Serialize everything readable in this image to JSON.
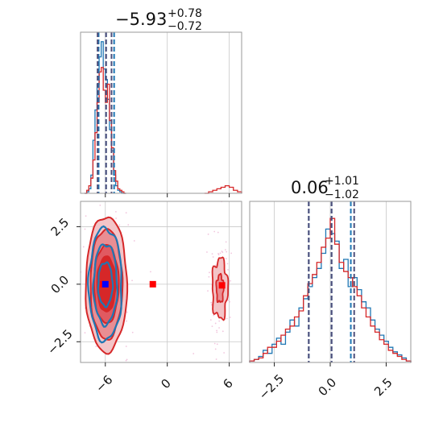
{
  "colors": {
    "blue": "#1f77b4",
    "red": "#d62728",
    "red_fill_dark": "#d62728",
    "red_fill_light": "#eeaaae",
    "quantile_line": "#4e4e7a"
  },
  "chart_data": [
    {
      "type": "histogram",
      "panel": "top-left (marginal of x)",
      "title": {
        "value": "−5.93",
        "upper": "+0.78",
        "lower": "−0.72"
      },
      "xlim": [
        -8.4,
        7.2
      ],
      "xticks": [
        -6,
        0,
        6
      ],
      "grid": true,
      "series": [
        {
          "name": "",
          "color": "blue",
          "bin_edges": [
            -8.0,
            -7.8,
            -7.6,
            -7.4,
            -7.2,
            -7.0,
            -6.8,
            -6.6,
            -6.4,
            -6.2,
            -6.0,
            -5.8,
            -5.6,
            -5.4,
            -5.2,
            -5.0,
            -4.8,
            -4.6,
            -4.4,
            -4.2,
            -4.0
          ],
          "counts": [
            0.0,
            0.01,
            0.03,
            0.12,
            0.35,
            0.55,
            0.72,
            0.9,
            1.0,
            0.82,
            0.75,
            0.62,
            0.42,
            0.28,
            0.12,
            0.05,
            0.02,
            0.01,
            0.0,
            0.0
          ],
          "quantiles": [
            -6.65,
            -5.93,
            -5.15
          ]
        },
        {
          "name": "",
          "color": "red",
          "bin_edges": [
            -8.0,
            -7.8,
            -7.6,
            -7.4,
            -7.2,
            -7.0,
            -6.8,
            -6.6,
            -6.4,
            -6.2,
            -6.0,
            -5.8,
            -5.6,
            -5.4,
            -5.2,
            -5.0,
            -4.8,
            -4.6,
            -4.4,
            -4.2,
            -4.0
          ],
          "counts": [
            0.0,
            0.02,
            0.05,
            0.1,
            0.22,
            0.4,
            0.6,
            0.8,
            0.83,
            0.68,
            0.6,
            0.72,
            0.48,
            0.3,
            0.15,
            0.08,
            0.03,
            0.02,
            0.01,
            0.0
          ],
          "secondary_mode": {
            "bin_edges": [
              3.6,
              4.0,
              4.4,
              4.8,
              5.2,
              5.6,
              6.0,
              6.4,
              6.8,
              7.2
            ],
            "counts": [
              0.0,
              0.01,
              0.02,
              0.03,
              0.04,
              0.05,
              0.04,
              0.02,
              0.01
            ]
          },
          "quantiles": [
            -6.75,
            -5.93,
            -5.4
          ]
        }
      ]
    },
    {
      "type": "histogram",
      "panel": "bottom-right (marginal of y)",
      "title": {
        "value": "0.06",
        "upper": "+1.01",
        "lower": "−1.02"
      },
      "xlim": [
        -3.6,
        3.6
      ],
      "xticks": [
        -2.5,
        0.0,
        2.5
      ],
      "xtick_labels": [
        "−2.5",
        "0.0",
        "2.5"
      ],
      "grid": true,
      "series": [
        {
          "name": "",
          "color": "blue",
          "bin_edges": [
            -3.6,
            -3.4,
            -3.2,
            -3.0,
            -2.8,
            -2.6,
            -2.4,
            -2.2,
            -2.0,
            -1.8,
            -1.6,
            -1.4,
            -1.2,
            -1.0,
            -0.8,
            -0.6,
            -0.4,
            -0.2,
            0.0,
            0.2,
            0.4,
            0.6,
            0.8,
            1.0,
            1.2,
            1.4,
            1.6,
            1.8,
            2.0,
            2.2,
            2.4,
            2.6,
            2.8,
            3.0,
            3.2,
            3.4,
            3.6
          ],
          "counts": [
            0.01,
            0.02,
            0.04,
            0.08,
            0.06,
            0.12,
            0.16,
            0.12,
            0.2,
            0.28,
            0.24,
            0.36,
            0.42,
            0.5,
            0.56,
            0.62,
            0.72,
            0.88,
            0.85,
            0.8,
            0.62,
            0.68,
            0.5,
            0.56,
            0.48,
            0.4,
            0.36,
            0.28,
            0.22,
            0.18,
            0.14,
            0.1,
            0.07,
            0.05,
            0.03,
            0.01
          ],
          "quantiles": [
            -0.96,
            0.06,
            0.92
          ]
        },
        {
          "name": "",
          "color": "red",
          "bin_edges": [
            -3.6,
            -3.4,
            -3.2,
            -3.0,
            -2.8,
            -2.6,
            -2.4,
            -2.2,
            -2.0,
            -1.8,
            -1.6,
            -1.4,
            -1.2,
            -1.0,
            -0.8,
            -0.6,
            -0.4,
            -0.2,
            0.0,
            0.2,
            0.4,
            0.6,
            0.8,
            1.0,
            1.2,
            1.4,
            1.6,
            1.8,
            2.0,
            2.2,
            2.4,
            2.6,
            2.8,
            3.0,
            3.2,
            3.4,
            3.6
          ],
          "counts": [
            0.01,
            0.02,
            0.03,
            0.06,
            0.1,
            0.1,
            0.14,
            0.18,
            0.22,
            0.24,
            0.3,
            0.34,
            0.44,
            0.52,
            0.58,
            0.66,
            0.76,
            0.82,
            0.95,
            0.78,
            0.66,
            0.6,
            0.56,
            0.5,
            0.44,
            0.36,
            0.3,
            0.24,
            0.2,
            0.15,
            0.12,
            0.08,
            0.06,
            0.04,
            0.02,
            0.01
          ],
          "quantiles": [
            -0.96,
            0.06,
            1.07
          ]
        }
      ]
    },
    {
      "type": "contour",
      "panel": "bottom-left (joint x–y)",
      "xlim": [
        -8.4,
        7.2
      ],
      "ylim": [
        -3.4,
        3.6
      ],
      "xticks": [
        -6,
        0,
        6
      ],
      "yticks": [
        -2.5,
        0.0,
        2.5
      ],
      "ytick_labels": [
        "−2.5",
        "0.0",
        "2.5"
      ],
      "grid": true,
      "series": [
        {
          "name": "",
          "color": "red",
          "main_mode": {
            "center": [
              -5.9,
              0.0
            ],
            "contour_half_widths": [
              [
                2.0,
                2.95
              ],
              [
                1.55,
                2.4
              ],
              [
                1.2,
                1.7
              ],
              [
                0.9,
                1.2
              ]
            ]
          },
          "secondary_mode": {
            "center": [
              5.1,
              -0.2
            ],
            "contour_half_widths": [
              [
                0.75,
                1.3
              ],
              [
                0.35,
                0.6
              ]
            ]
          },
          "markers": [
            [
              -6.2,
              0.0
            ],
            [
              -1.4,
              0.0
            ],
            [
              5.3,
              -0.05
            ]
          ]
        },
        {
          "name": "",
          "color": "blue",
          "main_mode": {
            "center": [
              -6.0,
              0.0
            ],
            "contour_half_widths": [
              [
                1.6,
                2.45
              ],
              [
                1.15,
                1.75
              ],
              [
                0.7,
                0.95
              ]
            ]
          },
          "markers": [
            [
              -6.0,
              0.0
            ]
          ]
        }
      ]
    }
  ]
}
